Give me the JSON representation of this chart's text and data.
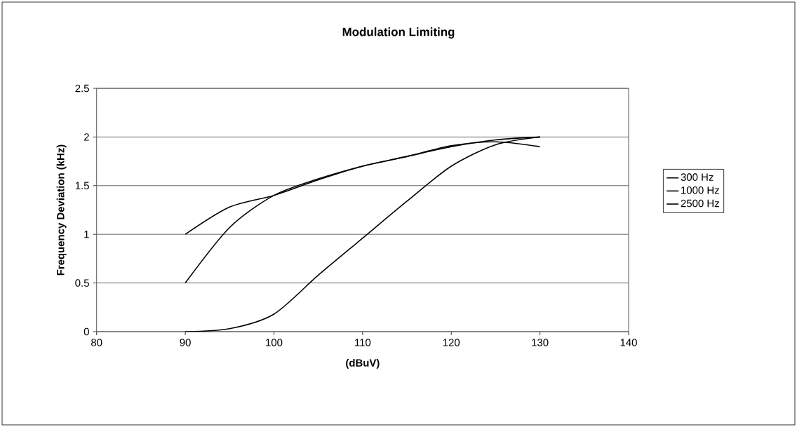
{
  "chart_data": {
    "type": "line",
    "title": "Modulation Limiting",
    "xlabel": "(dBuV)",
    "ylabel": "Frequency Deviation (kHz)",
    "x": [
      90,
      95,
      100,
      105,
      110,
      115,
      120,
      125,
      130
    ],
    "series": [
      {
        "name": "300 Hz",
        "color": "#000000",
        "values": [
          1.0,
          1.28,
          1.4,
          1.56,
          1.7,
          1.8,
          1.91,
          1.95,
          1.9
        ]
      },
      {
        "name": "1000 Hz",
        "color": "#000000",
        "values": [
          0.5,
          1.07,
          1.4,
          1.57,
          1.7,
          1.8,
          1.9,
          1.97,
          2.0
        ]
      },
      {
        "name": "2500 Hz",
        "color": "#000000",
        "values": [
          0.0,
          0.03,
          0.18,
          0.58,
          0.96,
          1.34,
          1.7,
          1.92,
          2.0
        ]
      }
    ],
    "xlim": [
      80,
      140
    ],
    "xticks": [
      80,
      90,
      100,
      110,
      120,
      130,
      140
    ],
    "ylim": [
      0,
      2.5
    ],
    "yticks": [
      0,
      0.5,
      1,
      1.5,
      2,
      2.5
    ],
    "grid": "y",
    "legend": "right",
    "marker": "none",
    "line_style": "solid"
  }
}
